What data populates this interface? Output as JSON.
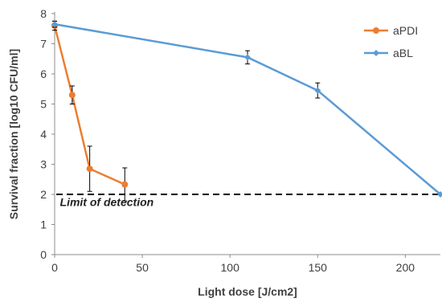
{
  "chart_data": {
    "type": "line",
    "xlabel": "Light dose [J/cm2]",
    "ylabel": "Survival fraction [log10 CFU/ml]",
    "xlim": [
      0,
      220
    ],
    "ylim": [
      0,
      8
    ],
    "xticks": [
      0,
      50,
      100,
      150,
      200
    ],
    "yticks": [
      0,
      1,
      2,
      3,
      4,
      5,
      6,
      7,
      8
    ],
    "grid": false,
    "legend": "top-right",
    "series": [
      {
        "name": "aPDI",
        "color": "#ED7D31",
        "marker": "circle",
        "x": [
          0,
          10,
          20,
          40
        ],
        "y": [
          7.6,
          5.3,
          2.85,
          2.33
        ],
        "err": [
          0.15,
          0.3,
          0.75,
          0.55
        ]
      },
      {
        "name": "aBL",
        "color": "#5B9BD5",
        "marker": "diamond",
        "x": [
          0,
          110,
          150,
          220
        ],
        "y": [
          7.65,
          6.55,
          5.45,
          2.0
        ],
        "err": [
          0.1,
          0.22,
          0.25,
          0.0
        ]
      }
    ],
    "reference_line": {
      "y": 2.0,
      "style": "dashed",
      "color": "#000000"
    },
    "annotations": [
      {
        "text": "Limit of detection",
        "x": 3,
        "y": 1.72
      }
    ]
  }
}
